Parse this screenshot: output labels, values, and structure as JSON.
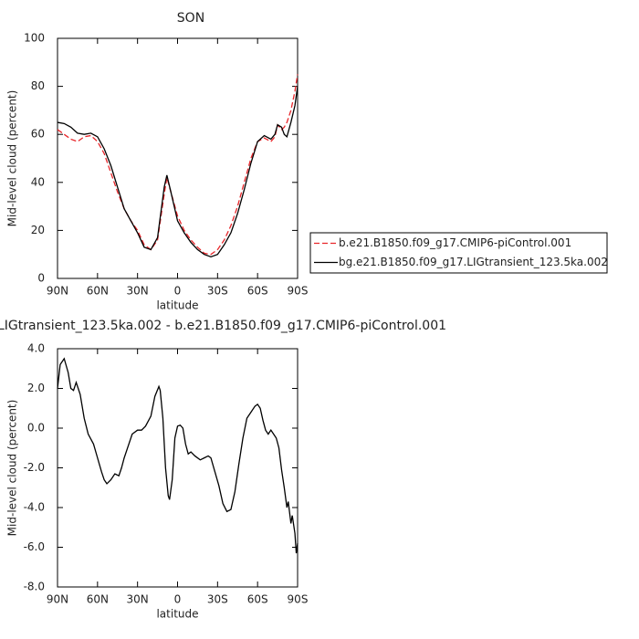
{
  "chart_data": [
    {
      "type": "line",
      "title": "SON",
      "x_label": "latitude",
      "y_label": "Mid-level cloud (percent)",
      "x": [
        90,
        85,
        80,
        75,
        70,
        65,
        60,
        55,
        50,
        45,
        40,
        35,
        30,
        25,
        20,
        15,
        10,
        8,
        5,
        0,
        -5,
        -10,
        -15,
        -20,
        -25,
        -30,
        -35,
        -40,
        -45,
        -50,
        -55,
        -60,
        -65,
        -70,
        -73,
        -75,
        -78,
        -80,
        -82,
        -85,
        -88,
        -90
      ],
      "series": [
        {
          "name": "b.e21.B1850.f09_g17.CMIP6-piControl.001",
          "color": "#e8262a",
          "dash": true,
          "values": [
            62,
            60,
            58,
            57,
            59,
            59.5,
            57,
            52,
            44,
            36,
            29,
            24,
            20,
            14,
            12,
            16,
            35,
            42,
            36,
            26,
            20,
            16,
            13,
            10.5,
            10,
            12,
            16,
            22,
            30,
            40,
            50,
            57,
            58.5,
            57,
            59,
            64,
            62,
            63,
            65,
            70,
            78,
            85
          ]
        },
        {
          "name": "bg.e21.B1850.f09_g17.LIGtransient_123.5ka.002",
          "color": "#000000",
          "dash": false,
          "values": [
            65,
            64.5,
            63,
            60.5,
            60,
            60.5,
            59,
            54,
            47,
            38,
            29,
            24,
            19,
            13,
            12,
            17,
            38,
            43,
            36,
            24,
            19,
            15,
            12,
            10,
            9,
            10,
            14,
            19,
            27,
            37,
            48,
            57,
            59.5,
            58,
            60,
            64,
            63,
            60,
            59,
            65,
            72,
            80
          ]
        }
      ],
      "xlim": [
        90,
        -90
      ],
      "xticks": [
        {
          "value": 90,
          "label": "90N"
        },
        {
          "value": 60,
          "label": "60N"
        },
        {
          "value": 30,
          "label": "30N"
        },
        0,
        {
          "value": -30,
          "label": "30S"
        },
        {
          "value": -60,
          "label": "60S"
        },
        {
          "value": -90,
          "label": "90S"
        }
      ],
      "ylim": [
        0,
        100
      ],
      "yticks": [
        0,
        20,
        40,
        60,
        80,
        100
      ],
      "legend": "right"
    },
    {
      "type": "line",
      "title": "LIGtransient_123.5ka.002 - b.e21.B1850.f09_g17.CMIP6-piControl.001",
      "x_label": "latitude",
      "y_label": "Mid-level cloud (percent)",
      "x": [
        90,
        88,
        85,
        82,
        80,
        78,
        76,
        73,
        70,
        67,
        63,
        60,
        57,
        55,
        53,
        50,
        47,
        44,
        42,
        40,
        37,
        34,
        30,
        27,
        24,
        20,
        17,
        14,
        13,
        11,
        9,
        7,
        6,
        4,
        2,
        0,
        -2,
        -4,
        -6,
        -8,
        -10,
        -13,
        -17,
        -20,
        -23,
        -25,
        -28,
        -31,
        -34,
        -37,
        -40,
        -43,
        -46,
        -49,
        -52,
        -55,
        -58,
        -60,
        -62,
        -64,
        -66,
        -68,
        -70,
        -72,
        -74,
        -76,
        -78,
        -80,
        -82,
        -83,
        -85,
        -86,
        -88,
        -89,
        -90
      ],
      "values": [
        2.0,
        3.2,
        3.5,
        2.8,
        2.0,
        1.9,
        2.3,
        1.7,
        0.5,
        -0.3,
        -0.8,
        -1.5,
        -2.2,
        -2.6,
        -2.8,
        -2.6,
        -2.3,
        -2.4,
        -2.0,
        -1.5,
        -0.9,
        -0.3,
        -0.1,
        -0.1,
        0.1,
        0.6,
        1.6,
        2.1,
        1.9,
        0.5,
        -2.0,
        -3.4,
        -3.6,
        -2.6,
        -0.5,
        0.1,
        0.15,
        0.0,
        -0.8,
        -1.3,
        -1.2,
        -1.4,
        -1.6,
        -1.5,
        -1.4,
        -1.5,
        -2.2,
        -2.9,
        -3.8,
        -4.2,
        -4.1,
        -3.2,
        -1.8,
        -0.5,
        0.5,
        0.8,
        1.1,
        1.2,
        1.0,
        0.4,
        -0.1,
        -0.3,
        -0.1,
        -0.3,
        -0.5,
        -1.0,
        -2.1,
        -3.0,
        -4.0,
        -3.7,
        -4.8,
        -4.4,
        -5.3,
        -6.3,
        -5.8
      ],
      "color": "#000000",
      "xlim": [
        90,
        -90
      ],
      "xticks": [
        {
          "value": 90,
          "label": "90N"
        },
        {
          "value": 60,
          "label": "60N"
        },
        {
          "value": 30,
          "label": "30N"
        },
        0,
        {
          "value": -30,
          "label": "30S"
        },
        {
          "value": -60,
          "label": "60S"
        },
        {
          "value": -90,
          "label": "90S"
        }
      ],
      "ylim": [
        -8,
        4
      ],
      "yticks": [
        {
          "value": 4,
          "label": "4.0"
        },
        {
          "value": 2,
          "label": "2.0"
        },
        {
          "value": 0,
          "label": "0.0"
        },
        {
          "value": -2,
          "label": "-2.0"
        },
        {
          "value": -4,
          "label": "-4.0"
        },
        {
          "value": -6,
          "label": "-6.0"
        },
        {
          "value": -8,
          "label": "-8.0"
        }
      ]
    }
  ]
}
